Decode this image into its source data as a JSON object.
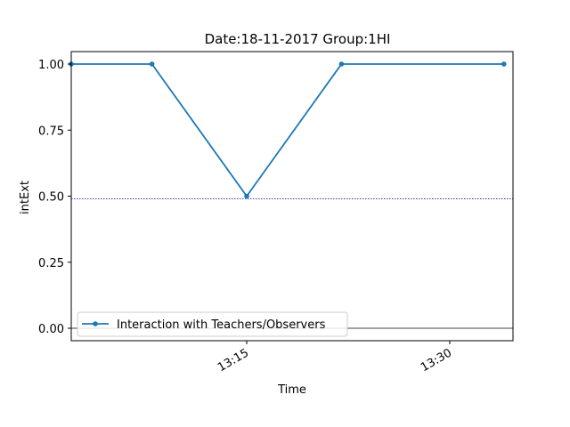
{
  "chart_data": {
    "type": "line",
    "title": "Date:18-11-2017  Group:1HI",
    "xlabel": "Time",
    "ylabel": "intExt",
    "x_ticks": [
      "13:15",
      "13:30"
    ],
    "y_ticks": [
      "0.00",
      "0.25",
      "0.50",
      "0.75",
      "1.00"
    ],
    "ylim": [
      -0.0,
      1.0
    ],
    "series": [
      {
        "name": "Interaction with Teachers/Observers",
        "color": "#1f77b4",
        "x": [
          "13:01",
          "13:08",
          "13:15",
          "13:22",
          "13:34"
        ],
        "y": [
          1.0,
          1.0,
          0.5,
          1.0,
          1.0
        ]
      }
    ],
    "reference_lines": [
      {
        "y": 0.49,
        "style": "dotted",
        "color": "#00008b"
      },
      {
        "y": 0.0,
        "style": "solid",
        "color": "#000000"
      }
    ],
    "legend_position": "lower-left",
    "grid": false
  }
}
